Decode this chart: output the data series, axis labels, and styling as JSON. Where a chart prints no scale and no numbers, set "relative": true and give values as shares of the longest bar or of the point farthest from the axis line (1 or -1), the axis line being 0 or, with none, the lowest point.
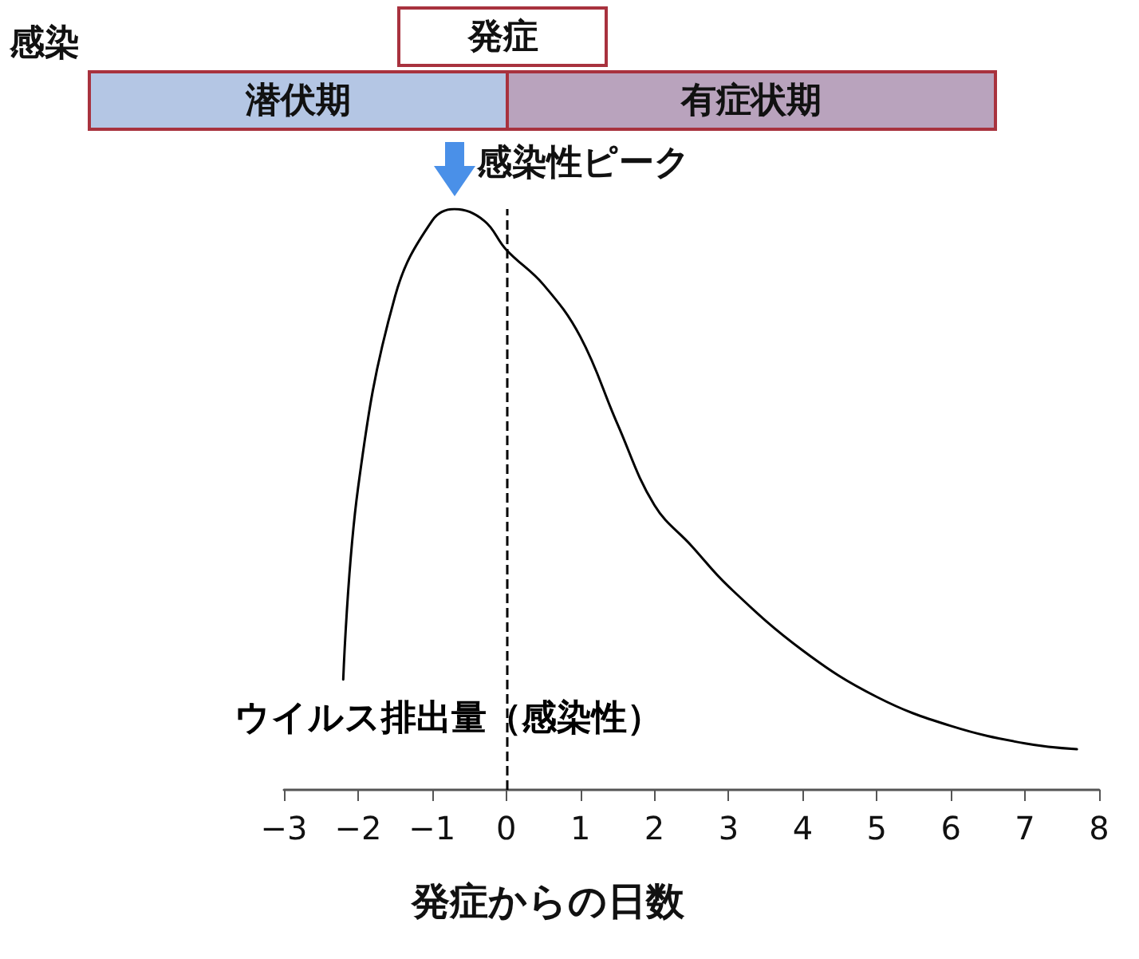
{
  "chart_data": {
    "type": "line",
    "relative": true,
    "xlabel": "発症からの日数",
    "annotations": [
      "感染",
      "発症",
      "潜伏期",
      "有症状期",
      {
        "text": "感染性ピーク",
        "x": -0.7,
        "y": 1
      }
    ],
    "series": [
      {
        "name": "ウイルス排出量（感染性）",
        "color": "#000000",
        "x": [
          -2.2,
          -2,
          -1.5,
          -1,
          -0.7,
          -0.3,
          0,
          0.5,
          1,
          1.5,
          2,
          2.5,
          3,
          4,
          5,
          6,
          7,
          7.7
        ],
        "values": [
          0.19,
          0.52,
          0.85,
          0.98,
          1,
          0.98,
          0.93,
          0.87,
          0.78,
          0.63,
          0.49,
          0.42,
          0.35,
          0.24,
          0.16,
          0.11,
          0.08,
          0.07
        ]
      }
    ],
    "xlim": [
      -3,
      8
    ],
    "xticks": [
      -3,
      -2,
      -1,
      0,
      1,
      2,
      3,
      4,
      5,
      6,
      7,
      8
    ],
    "ref_lines": [
      {
        "axis": "x",
        "value": 0,
        "line_style": "dashed",
        "color": "#000000"
      }
    ],
    "grid": false,
    "legend": false,
    "marker": "none",
    "line_style": "solid"
  }
}
